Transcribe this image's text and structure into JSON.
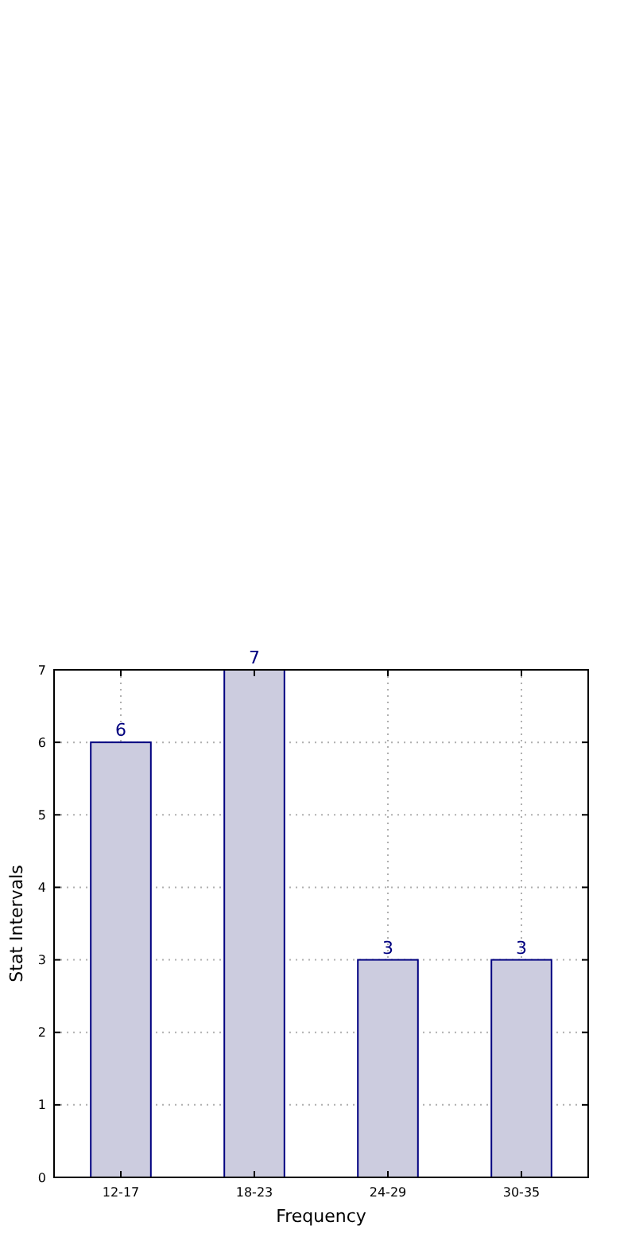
{
  "chart_data": {
    "type": "bar",
    "xlabel": "Frequency",
    "ylabel": "Stat Intervals",
    "categories": [
      "12-17",
      "18-23",
      "24-29",
      "30-35"
    ],
    "values": [
      6,
      7,
      3,
      3
    ],
    "color": "#ccccdf",
    "ylim": [
      0,
      7
    ],
    "yticks": [
      0,
      1,
      2,
      3,
      4,
      5,
      6,
      7
    ],
    "grid": true,
    "data_labels": true
  }
}
